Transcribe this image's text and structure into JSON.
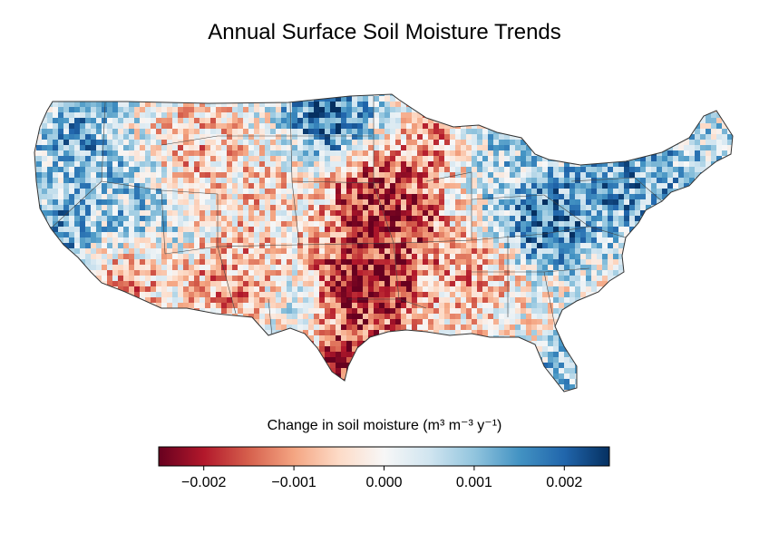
{
  "title": "Annual Surface Soil Moisture Trends",
  "colorbar": {
    "label": "Change in soil moisture (m³ m⁻³ y⁻¹)",
    "min": -0.0025,
    "max": 0.0025,
    "ticks": [
      "−0.002",
      "−0.001",
      "0.000",
      "0.001",
      "0.002"
    ],
    "tick_values": [
      -0.002,
      -0.001,
      0.0,
      0.001,
      0.002
    ],
    "colormap": "RdBu",
    "colors": [
      "#67001f",
      "#b2182b",
      "#d6604d",
      "#f4a582",
      "#fddbc7",
      "#f7f7f7",
      "#d1e5f0",
      "#92c5de",
      "#4393c3",
      "#2166ac",
      "#053061"
    ]
  },
  "map": {
    "region": "Contiguous United States",
    "border_color": "#333333"
  }
}
